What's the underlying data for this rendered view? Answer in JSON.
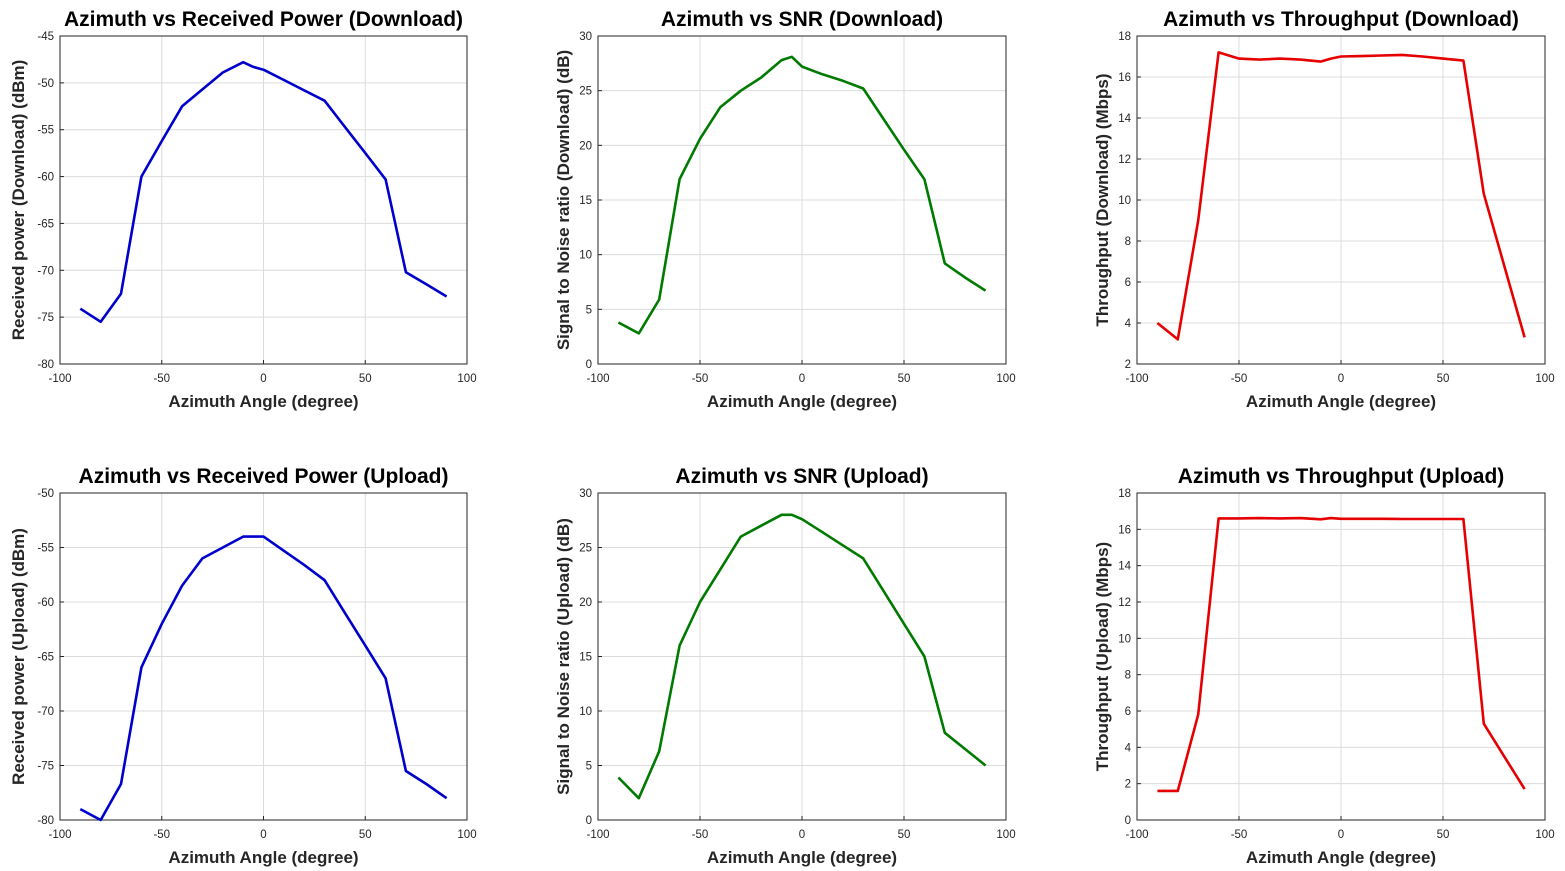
{
  "chart_data": [
    {
      "type": "line",
      "title": "Azimuth vs Received Power (Download)",
      "xlabel": "Azimuth Angle (degree)",
      "ylabel": "Received power (Download) (dBm)",
      "xlim": [
        -100,
        100
      ],
      "ylim": [
        -80,
        -45
      ],
      "xticks": [
        -100,
        -50,
        0,
        50,
        100
      ],
      "yticks": [
        -80,
        -75,
        -70,
        -65,
        -60,
        -55,
        -50,
        -45
      ],
      "grid": true,
      "series": [
        {
          "color": "#0000cc",
          "x": [
            -90,
            -80,
            -70,
            -60,
            -50,
            -40,
            -30,
            -20,
            -10,
            -5,
            0,
            10,
            20,
            30,
            40,
            50,
            60,
            70,
            80,
            90
          ],
          "y": [
            -74.1,
            -75.5,
            -72.5,
            -60,
            -56.2,
            -52.5,
            -50.7,
            -48.9,
            -47.8,
            -48.3,
            -48.6,
            -49.7,
            -50.8,
            -51.9,
            -54.7,
            -57.5,
            -60.3,
            -70.2,
            -71.5,
            -72.8
          ]
        }
      ]
    },
    {
      "type": "line",
      "title": "Azimuth vs SNR (Download)",
      "xlabel": "Azimuth Angle (degree)",
      "ylabel": "Signal to Noise ratio (Download) (dB)",
      "xlim": [
        -100,
        100
      ],
      "ylim": [
        0,
        30
      ],
      "xticks": [
        -100,
        -50,
        0,
        50,
        100
      ],
      "yticks": [
        0,
        5,
        10,
        15,
        20,
        25,
        30
      ],
      "grid": true,
      "series": [
        {
          "color": "#007a00",
          "x": [
            -90,
            -80,
            -70,
            -60,
            -50,
            -40,
            -30,
            -20,
            -10,
            -5,
            0,
            10,
            20,
            30,
            40,
            50,
            60,
            70,
            80,
            90
          ],
          "y": [
            3.8,
            2.8,
            5.9,
            16.9,
            20.6,
            23.5,
            25.0,
            26.2,
            27.8,
            28.1,
            27.2,
            26.5,
            25.9,
            25.2,
            22.4,
            19.6,
            16.9,
            9.2,
            7.9,
            6.7
          ]
        }
      ]
    },
    {
      "type": "line",
      "title": "Azimuth vs Throughput (Download)",
      "xlabel": "Azimuth Angle (degree)",
      "ylabel": "Throughput (Download) (Mbps)",
      "xlim": [
        -100,
        100
      ],
      "ylim": [
        2,
        18
      ],
      "xticks": [
        -100,
        -50,
        0,
        50,
        100
      ],
      "yticks": [
        2,
        4,
        6,
        8,
        10,
        12,
        14,
        16,
        18
      ],
      "grid": true,
      "series": [
        {
          "color": "#e60000",
          "x": [
            -90,
            -80,
            -70,
            -60,
            -50,
            -40,
            -30,
            -20,
            -10,
            -5,
            0,
            10,
            20,
            30,
            40,
            50,
            60,
            70,
            80,
            90
          ],
          "y": [
            4.0,
            3.2,
            9.0,
            17.2,
            16.9,
            16.85,
            16.9,
            16.85,
            16.75,
            16.9,
            17.0,
            17.02,
            17.05,
            17.08,
            17.0,
            16.9,
            16.8,
            10.3,
            6.8,
            3.3
          ]
        }
      ]
    },
    {
      "type": "line",
      "title": "Azimuth vs Received Power (Upload)",
      "xlabel": "Azimuth Angle (degree)",
      "ylabel": "Received power (Upload) (dBm)",
      "xlim": [
        -100,
        100
      ],
      "ylim": [
        -80,
        -50
      ],
      "xticks": [
        -100,
        -50,
        0,
        50,
        100
      ],
      "yticks": [
        -80,
        -75,
        -70,
        -65,
        -60,
        -55,
        -50
      ],
      "grid": true,
      "series": [
        {
          "color": "#0000cc",
          "x": [
            -90,
            -80,
            -70,
            -60,
            -50,
            -40,
            -30,
            -20,
            -10,
            0,
            10,
            20,
            30,
            40,
            50,
            60,
            70,
            80,
            90
          ],
          "y": [
            -79,
            -80,
            -76.7,
            -66,
            -62,
            -58.5,
            -56,
            -55,
            -54,
            -54,
            -55.3,
            -56.6,
            -58,
            -61,
            -64,
            -67,
            -75.5,
            -76.7,
            -78
          ]
        }
      ]
    },
    {
      "type": "line",
      "title": "Azimuth vs SNR (Upload)",
      "xlabel": "Azimuth Angle (degree)",
      "ylabel": "Signal to Noise ratio (Upload) (dB)",
      "xlim": [
        -100,
        100
      ],
      "ylim": [
        0,
        30
      ],
      "xticks": [
        -100,
        -50,
        0,
        50,
        100
      ],
      "yticks": [
        0,
        5,
        10,
        15,
        20,
        25,
        30
      ],
      "grid": true,
      "series": [
        {
          "color": "#007a00",
          "x": [
            -90,
            -80,
            -70,
            -60,
            -50,
            -40,
            -30,
            -20,
            -10,
            -5,
            0,
            10,
            20,
            30,
            40,
            50,
            60,
            70,
            80,
            90
          ],
          "y": [
            3.9,
            2.0,
            6.3,
            16.0,
            20.0,
            23.0,
            26.0,
            27.0,
            28.0,
            28.0,
            27.6,
            26.4,
            25.2,
            24.0,
            21.0,
            18.0,
            15.0,
            8.0,
            6.5,
            5.0
          ]
        }
      ]
    },
    {
      "type": "line",
      "title": "Azimuth vs Throughput (Upload)",
      "xlabel": "Azimuth Angle (degree)",
      "ylabel": "Throughput (Upload) (Mbps)",
      "xlim": [
        -100,
        100
      ],
      "ylim": [
        0,
        18
      ],
      "xticks": [
        -100,
        -50,
        0,
        50,
        100
      ],
      "yticks": [
        0,
        2,
        4,
        6,
        8,
        10,
        12,
        14,
        16,
        18
      ],
      "grid": true,
      "series": [
        {
          "color": "#e60000",
          "x": [
            -90,
            -80,
            -70,
            -60,
            -50,
            -40,
            -30,
            -20,
            -10,
            -5,
            0,
            10,
            20,
            30,
            40,
            50,
            60,
            70,
            80,
            90
          ],
          "y": [
            1.6,
            1.6,
            5.8,
            16.6,
            16.6,
            16.62,
            16.6,
            16.62,
            16.55,
            16.62,
            16.58,
            16.58,
            16.58,
            16.57,
            16.57,
            16.57,
            16.57,
            5.3,
            3.5,
            1.7
          ]
        }
      ]
    }
  ]
}
